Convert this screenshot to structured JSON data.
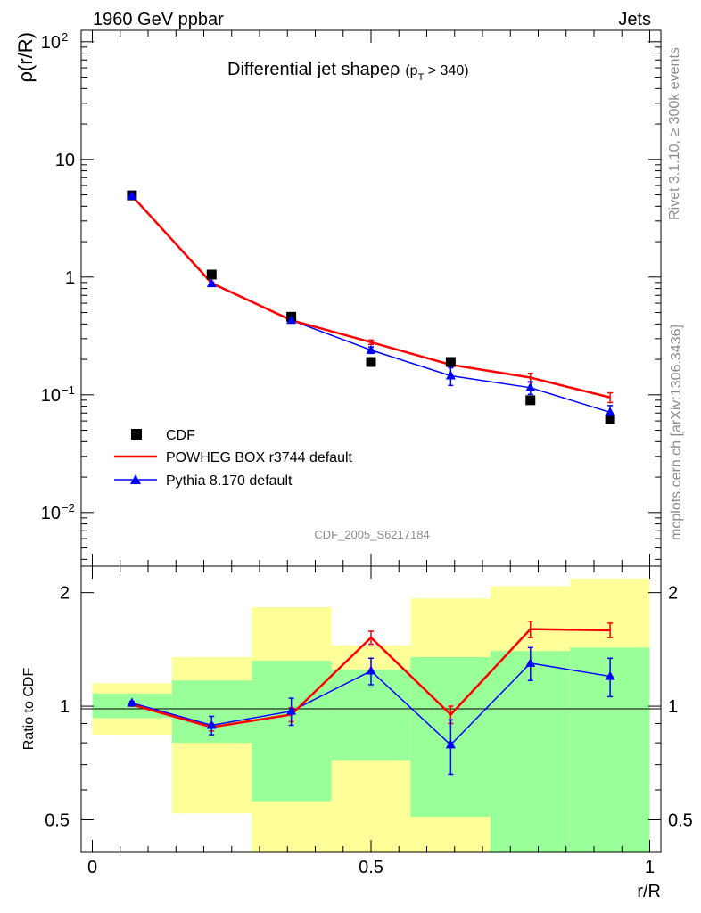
{
  "header": {
    "left": "1960 GeV ppbar",
    "right": "Jets"
  },
  "side_text": {
    "rivet": "Rivet 3.1.10, ≥ 300k events",
    "site": "mcplots.cern.ch [arXiv:1306.3436]"
  },
  "colors": {
    "powheg": "#ff0000",
    "pythia": "#0000ff",
    "cdf": "#000000",
    "band_inner": "#99ff99",
    "band_outer": "#ffff99"
  },
  "chart_data": [
    {
      "type": "scatter",
      "title": "Differential jet shapeρ",
      "title_sub_prefix": "(p",
      "title_sub_index": "T",
      "title_sub_suffix": " > 340)",
      "ylabel": "ρ(r/R)",
      "xlabel": "",
      "yscale": "log",
      "xlim": [
        -0.02,
        1.02
      ],
      "ylim": [
        0.0035,
        125
      ],
      "ytick_labels": [
        "10",
        "1"
      ],
      "ytick_powers": [
        {
          "value": 100,
          "base": "10",
          "exp": "2"
        },
        {
          "value": 0.1,
          "base": "10",
          "exp": "−1"
        },
        {
          "value": 0.01,
          "base": "10",
          "exp": "−2"
        }
      ],
      "watermark": "CDF_2005_S6217184",
      "legend_position": "lower-left",
      "legend": [
        "CDF",
        "POWHEG BOX r3744 default",
        "Pythia 8.170 default"
      ],
      "series": [
        {
          "name": "CDF",
          "x": [
            0.071,
            0.214,
            0.357,
            0.5,
            0.643,
            0.786,
            0.929
          ],
          "y": [
            4.95,
            1.05,
            0.46,
            0.19,
            0.19,
            0.09,
            0.062
          ]
        },
        {
          "name": "POWHEG BOX r3744 default",
          "x": [
            0.071,
            0.214,
            0.357,
            0.5,
            0.643,
            0.786,
            0.929
          ],
          "y": [
            4.92,
            0.89,
            0.43,
            0.28,
            0.18,
            0.14,
            0.095
          ],
          "yerr": [
            0.05,
            0.02,
            0.01,
            0.012,
            0.01,
            0.012,
            0.009
          ]
        },
        {
          "name": "Pythia 8.170 default",
          "x": [
            0.071,
            0.214,
            0.357,
            0.5,
            0.643,
            0.786,
            0.929
          ],
          "y": [
            4.9,
            0.88,
            0.43,
            0.24,
            0.145,
            0.115,
            0.071
          ],
          "yerr": [
            0.05,
            0.02,
            0.015,
            0.015,
            0.025,
            0.014,
            0.01
          ]
        }
      ]
    },
    {
      "type": "line",
      "ylabel": "Ratio to CDF",
      "xlabel": "r/R",
      "yscale": "log",
      "xlim": [
        -0.02,
        1.02
      ],
      "ylim": [
        0.41,
        2.35
      ],
      "xticks": [
        "0",
        "0.5",
        "1"
      ],
      "xtick_values": [
        0,
        0.5,
        1
      ],
      "yticks": [
        "0.5",
        "1",
        "2"
      ],
      "ytick_values": [
        0.5,
        1,
        2
      ],
      "reference_line": 1,
      "bin_edges": [
        0,
        0.143,
        0.286,
        0.429,
        0.571,
        0.714,
        0.857,
        1.0
      ],
      "band_inner": {
        "low": [
          0.93,
          0.8,
          0.56,
          0.72,
          0.51,
          0.38,
          0.35
        ],
        "high": [
          1.08,
          1.17,
          1.32,
          1.25,
          1.35,
          1.4,
          1.43
        ]
      },
      "band_outer": {
        "low": [
          0.84,
          0.52,
          0.3,
          0.3,
          0.3,
          0.3,
          0.3
        ],
        "high": [
          1.15,
          1.35,
          1.83,
          1.45,
          1.93,
          2.08,
          2.18
        ]
      },
      "series": [
        {
          "name": "POWHEG BOX r3744 default",
          "x": [
            0.071,
            0.214,
            0.357,
            0.5,
            0.643,
            0.786,
            0.929
          ],
          "y": [
            1.01,
            0.88,
            0.95,
            1.52,
            0.95,
            1.6,
            1.59
          ],
          "yerr": [
            0.01,
            0.02,
            0.04,
            0.06,
            0.05,
            0.08,
            0.07
          ]
        },
        {
          "name": "Pythia 8.170 default",
          "x": [
            0.071,
            0.214,
            0.357,
            0.5,
            0.643,
            0.786,
            0.929
          ],
          "y": [
            1.02,
            0.89,
            0.97,
            1.24,
            0.79,
            1.3,
            1.2
          ],
          "yerr": [
            0.01,
            0.05,
            0.08,
            0.1,
            0.13,
            0.13,
            0.14
          ]
        }
      ]
    }
  ]
}
